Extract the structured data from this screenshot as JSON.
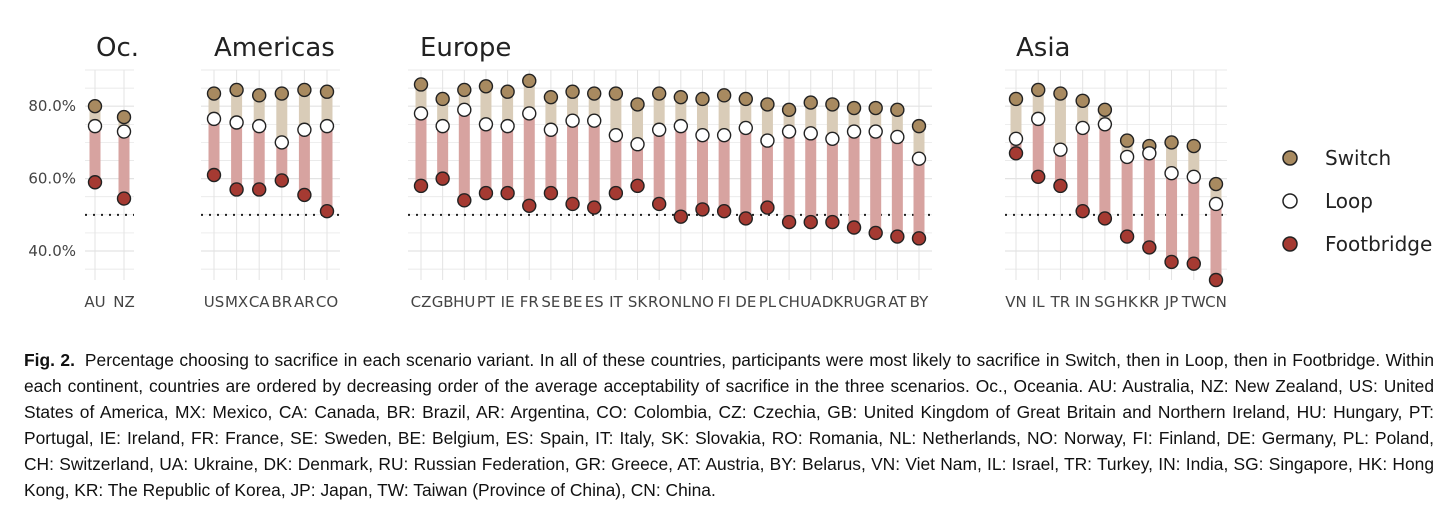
{
  "chart_data": {
    "type": "dot-range",
    "ylim": [
      32,
      90
    ],
    "yticks": [
      40,
      60,
      80
    ],
    "ytick_labels": [
      "40.0%",
      "60.0%",
      "80.0%"
    ],
    "reference_line": 50,
    "series": [
      {
        "name": "Switch",
        "color": "#a88a60"
      },
      {
        "name": "Loop",
        "color": "#ffffff"
      },
      {
        "name": "Footbridge",
        "color": "#a53a32"
      }
    ],
    "colors": {
      "upper_band": "#d9ccb8",
      "lower_band": "#d7a3a0",
      "grid": "#e3e3e3",
      "dotted": "#222222"
    },
    "legend_position": "right",
    "panels": [
      {
        "title": "Oc.",
        "countries": [
          "AU",
          "NZ"
        ],
        "switch": [
          80,
          77
        ],
        "loop": [
          74.5,
          73
        ],
        "footbridge": [
          59,
          54.5
        ]
      },
      {
        "title": "Americas",
        "countries": [
          "US",
          "MX",
          "CA",
          "BR",
          "AR",
          "CO"
        ],
        "switch": [
          83.5,
          84.5,
          83,
          83.5,
          84.5,
          84
        ],
        "loop": [
          76.5,
          75.5,
          74.5,
          70,
          73.5,
          74.5
        ],
        "footbridge": [
          61,
          57,
          57,
          59.5,
          55.5,
          51
        ]
      },
      {
        "title": "Europe",
        "countries": [
          "CZ",
          "GB",
          "HU",
          "PT",
          "IE",
          "FR",
          "SE",
          "BE",
          "ES",
          "IT",
          "SK",
          "RO",
          "NL",
          "NO",
          "FI",
          "DE",
          "PL",
          "CH",
          "UA",
          "DK",
          "RU",
          "GR",
          "AT",
          "BY"
        ],
        "switch": [
          86,
          82,
          84.5,
          85.5,
          84,
          87,
          82.5,
          84,
          83.5,
          83.5,
          80.5,
          83.5,
          82.5,
          82,
          83,
          82,
          80.5,
          79,
          81,
          80.5,
          79.5,
          79.5,
          79,
          74.5
        ],
        "loop": [
          78,
          74.5,
          79,
          75,
          74.5,
          78,
          73.5,
          76,
          76,
          72,
          69.5,
          73.5,
          74.5,
          72,
          72,
          74,
          70.5,
          73,
          72.5,
          71,
          73,
          73,
          71.5,
          65.5
        ],
        "footbridge": [
          58,
          60,
          54,
          56,
          56,
          52.5,
          56,
          53,
          52,
          56,
          58,
          53,
          49.5,
          51.5,
          51,
          49,
          52,
          48,
          48,
          48,
          46.5,
          45,
          44,
          43.5
        ]
      },
      {
        "title": "Asia",
        "countries": [
          "VN",
          "IL",
          "TR",
          "IN",
          "SG",
          "HK",
          "KR",
          "JP",
          "TW",
          "CN"
        ],
        "switch": [
          82,
          84.5,
          83.5,
          81.5,
          79,
          70.5,
          69,
          70,
          69,
          58.5
        ],
        "loop": [
          71,
          76.5,
          68,
          74,
          75,
          66,
          67,
          61.5,
          60.5,
          53
        ],
        "footbridge": [
          67,
          60.5,
          58,
          51,
          49,
          44,
          41,
          37,
          36.5,
          32
        ]
      }
    ]
  },
  "caption": {
    "label": "Fig. 2.",
    "text": "Percentage choosing to sacrifice in each scenario variant. In all of these countries, participants were most likely to sacrifice in Switch, then in Loop, then in Footbridge. Within each continent, countries are ordered by decreasing order of the average acceptability of sacrifice in the three scenarios. Oc., Oceania. AU: Australia, NZ: New Zealand, US: United States of America, MX: Mexico, CA: Canada, BR: Brazil, AR: Argentina, CO: Colombia, CZ: Czechia, GB: United Kingdom of Great Britain and Northern Ireland, HU: Hungary, PT: Portugal, IE: Ireland, FR: France, SE: Sweden, BE: Belgium, ES: Spain, IT: Italy, SK: Slovakia, RO: Romania, NL: Netherlands, NO: Norway, FI: Finland, DE: Germany, PL: Poland, CH: Switzerland, UA: Ukraine, DK: Denmark, RU: Russian Federation, GR: Greece, AT: Austria, BY: Belarus, VN: Viet Nam, IL: Israel, TR: Turkey, IN: India, SG: Singapore, HK: Hong Kong, KR: The Republic of Korea, JP: Japan, TW: Taiwan (Province of China), CN: China."
  }
}
